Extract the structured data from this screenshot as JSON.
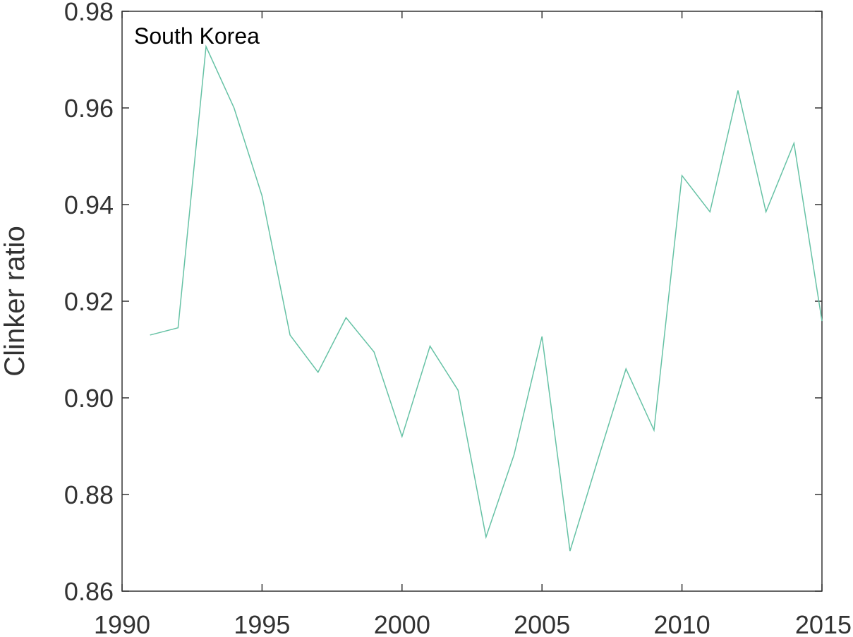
{
  "chart_data": {
    "type": "line",
    "annotation": "South Korea",
    "ylabel": "Clinker ratio",
    "color": "#66c2a5",
    "x": [
      1991,
      1992,
      1993,
      1994,
      1995,
      1996,
      1997,
      1998,
      1999,
      2000,
      2001,
      2002,
      2003,
      2004,
      2005,
      2006,
      2007,
      2008,
      2009,
      2010,
      2011,
      2012,
      2013,
      2014,
      2015
    ],
    "values": [
      0.913,
      0.9145,
      0.9727,
      0.96,
      0.9418,
      0.913,
      0.9053,
      0.9166,
      0.9095,
      0.892,
      0.9107,
      0.9016,
      0.8712,
      0.8882,
      0.9127,
      0.8683,
      0.8873,
      0.906,
      0.8933,
      0.946,
      0.9385,
      0.9636,
      0.9385,
      0.9527,
      0.9159
    ],
    "xlim": [
      1990,
      2015
    ],
    "xticks": [
      1990,
      1995,
      2000,
      2005,
      2010,
      2015
    ],
    "ylim": [
      0.86,
      0.98
    ],
    "yticks": [
      {
        "value": 0.86,
        "label": "0.86"
      },
      {
        "value": 0.88,
        "label": "0.88"
      },
      {
        "value": 0.9,
        "label": "0.90"
      },
      {
        "value": 0.92,
        "label": "0.92"
      },
      {
        "value": 0.94,
        "label": "0.94"
      },
      {
        "value": 0.96,
        "label": "0.96"
      },
      {
        "value": 0.98,
        "label": "0.98"
      }
    ],
    "grid": false
  }
}
